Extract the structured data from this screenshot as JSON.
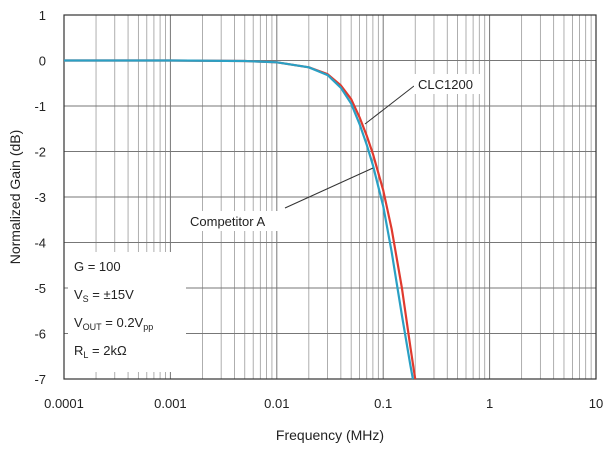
{
  "chart_data": {
    "type": "line",
    "xlabel": "Frequency (MHz)",
    "ylabel": "Normalized Gain (dB)",
    "xscale": "log",
    "xlim": [
      0.0001,
      10
    ],
    "ylim": [
      -7,
      1
    ],
    "x_ticks": [
      "0.0001",
      "0.001",
      "0.01",
      "0.1",
      "1",
      "10"
    ],
    "y_ticks": [
      "1",
      "0",
      "-1",
      "-2",
      "-3",
      "-4",
      "-5",
      "-6",
      "-7"
    ],
    "grid": true,
    "series": [
      {
        "name": "CLC1200",
        "color": "#e03a2e",
        "x": [
          0.0001,
          0.001,
          0.005,
          0.01,
          0.02,
          0.03,
          0.04,
          0.05,
          0.06,
          0.07,
          0.08,
          0.1,
          0.12,
          0.15,
          0.18,
          0.2
        ],
        "y": [
          0,
          0,
          -0.01,
          -0.04,
          -0.15,
          -0.3,
          -0.55,
          -0.85,
          -1.25,
          -1.65,
          -2.05,
          -2.85,
          -3.7,
          -5.0,
          -6.3,
          -7.0
        ]
      },
      {
        "name": "Competitor A",
        "color": "#2aa0c4",
        "x": [
          0.0001,
          0.001,
          0.005,
          0.01,
          0.02,
          0.03,
          0.04,
          0.05,
          0.06,
          0.07,
          0.08,
          0.1,
          0.12,
          0.15,
          0.18,
          0.19
        ],
        "y": [
          0,
          0,
          -0.01,
          -0.04,
          -0.15,
          -0.32,
          -0.6,
          -0.95,
          -1.4,
          -1.85,
          -2.3,
          -3.2,
          -4.2,
          -5.6,
          -6.7,
          -7.0
        ]
      }
    ],
    "annotations": [
      {
        "label": "CLC1200"
      },
      {
        "label": "Competitor A"
      }
    ],
    "conditions": [
      {
        "main": "G = 100"
      },
      {
        "main": "V",
        "sub": "S",
        "rest": " = ±15V"
      },
      {
        "main": "V",
        "sub": "OUT",
        "rest": " = 0.2V",
        "sub2": "pp"
      },
      {
        "main": "R",
        "sub": "L",
        "rest": " = 2kΩ"
      }
    ]
  }
}
